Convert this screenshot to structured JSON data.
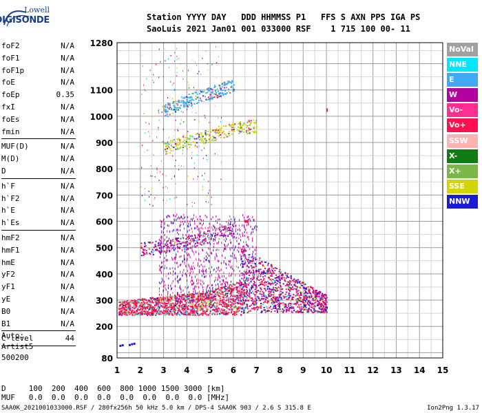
{
  "logo": {
    "top": "Lowell",
    "bottom": "DIGISONDE"
  },
  "header": {
    "line1": "Station YYYY DAY   DDD HHMMSS P1   FFS S AXN PPS IGA PS",
    "line2": "SaoLuis 2021 Jan01 001 033000 RSF    1 715 100 00- 11"
  },
  "params_group1": [
    {
      "name": "foF2",
      "value": "N/A"
    },
    {
      "name": "foF1",
      "value": "N/A"
    },
    {
      "name": "foF1p",
      "value": "N/A"
    },
    {
      "name": "foE",
      "value": "N/A"
    },
    {
      "name": "foEp",
      "value": "0.35"
    },
    {
      "name": "fxI",
      "value": "N/A"
    },
    {
      "name": "foEs",
      "value": "N/A"
    },
    {
      "name": "fmin",
      "value": "N/A"
    }
  ],
  "params_group2": [
    {
      "name": "MUF(D)",
      "value": "N/A"
    },
    {
      "name": "M(D)",
      "value": "N/A"
    },
    {
      "name": "D",
      "value": "N/A"
    }
  ],
  "params_group3": [
    {
      "name": "h`F",
      "value": "N/A"
    },
    {
      "name": "h`F2",
      "value": "N/A"
    },
    {
      "name": "h`E",
      "value": "N/A"
    },
    {
      "name": "h`Es",
      "value": "N/A"
    }
  ],
  "params_group4": [
    {
      "name": "hmF2",
      "value": "N/A"
    },
    {
      "name": "hmF1",
      "value": "N/A"
    },
    {
      "name": "hmE",
      "value": "N/A"
    },
    {
      "name": "yF2",
      "value": "N/A"
    },
    {
      "name": "yF1",
      "value": "N/A"
    },
    {
      "name": "yE",
      "value": "N/A"
    },
    {
      "name": "B0",
      "value": "N/A"
    },
    {
      "name": "B1",
      "value": "N/A"
    }
  ],
  "clevel": {
    "name": "C-level",
    "value": "44"
  },
  "autoscale": {
    "line1": "Auto:",
    "line2": "Artist5",
    "line3": "500200"
  },
  "legend": [
    {
      "label": "NoVal",
      "color": "#a0a0a0"
    },
    {
      "label": "NNE",
      "color": "#00e6ff"
    },
    {
      "label": "E",
      "color": "#3fa9f5"
    },
    {
      "label": "W",
      "color": "#b4009e"
    },
    {
      "label": "Vo-",
      "color": "#ff2f92"
    },
    {
      "label": "Vo+",
      "color": "#ff1050"
    },
    {
      "label": "SSW",
      "color": "#ffb3b3"
    },
    {
      "label": "X-",
      "color": "#127b12"
    },
    {
      "label": "X+",
      "color": "#7ab648"
    },
    {
      "label": "SSE",
      "color": "#d4d400"
    },
    {
      "label": "NNW",
      "color": "#1b1bd6"
    }
  ],
  "chart_data": {
    "type": "scatter",
    "xlabel": "",
    "ylabel": "",
    "x_ticks": [
      "1",
      "2",
      "3",
      "4",
      "5",
      "6",
      "7",
      "8",
      "9",
      "10",
      "11",
      "12",
      "13",
      "14",
      "15"
    ],
    "y_ticks": [
      "80",
      "200",
      "300",
      "400",
      "500",
      "600",
      "700",
      "800",
      "900",
      "1000",
      "1100",
      "1280"
    ],
    "xlim": [
      1,
      15
    ],
    "ylim": [
      80,
      1280
    ],
    "grid": true,
    "traces": [
      {
        "color": "#ff1050",
        "x": [
          1.0,
          2.0,
          3.0,
          4.0,
          5.0,
          6.0,
          6.5
        ],
        "y": [
          250,
          262,
          272,
          280,
          295,
          320,
          340
        ]
      },
      {
        "color": "#b4009e",
        "x": [
          2.0,
          3.0,
          4.0,
          5.0,
          6.0
        ],
        "y": [
          495,
          505,
          520,
          545,
          575
        ]
      },
      {
        "color": "#d4d400",
        "x": [
          3.0,
          4.0,
          5.0,
          6.0,
          7.0
        ],
        "y": [
          880,
          905,
          930,
          955,
          965
        ]
      },
      {
        "color": "#3fa9f5",
        "x": [
          3.0,
          4.0,
          5.0,
          6.0
        ],
        "y": [
          1020,
          1060,
          1090,
          1120
        ]
      }
    ]
  },
  "dtable": {
    "d_label": "D",
    "d_values": "100  200  400  600  800 1000 1500 3000 [km]",
    "muf_label": "MUF",
    "muf_values": "0.0  0.0  0.0  0.0  0.0  0.0  0.0  0.0 [MHz]"
  },
  "footer": {
    "left": "SAA0K_2021001033000.RSF / 280fx256h 50 kHz 5.0 km / DPS-4 SAA0K 903 / 2.6 S 315.8 E",
    "right": "Ion2Png 1.3.17"
  }
}
